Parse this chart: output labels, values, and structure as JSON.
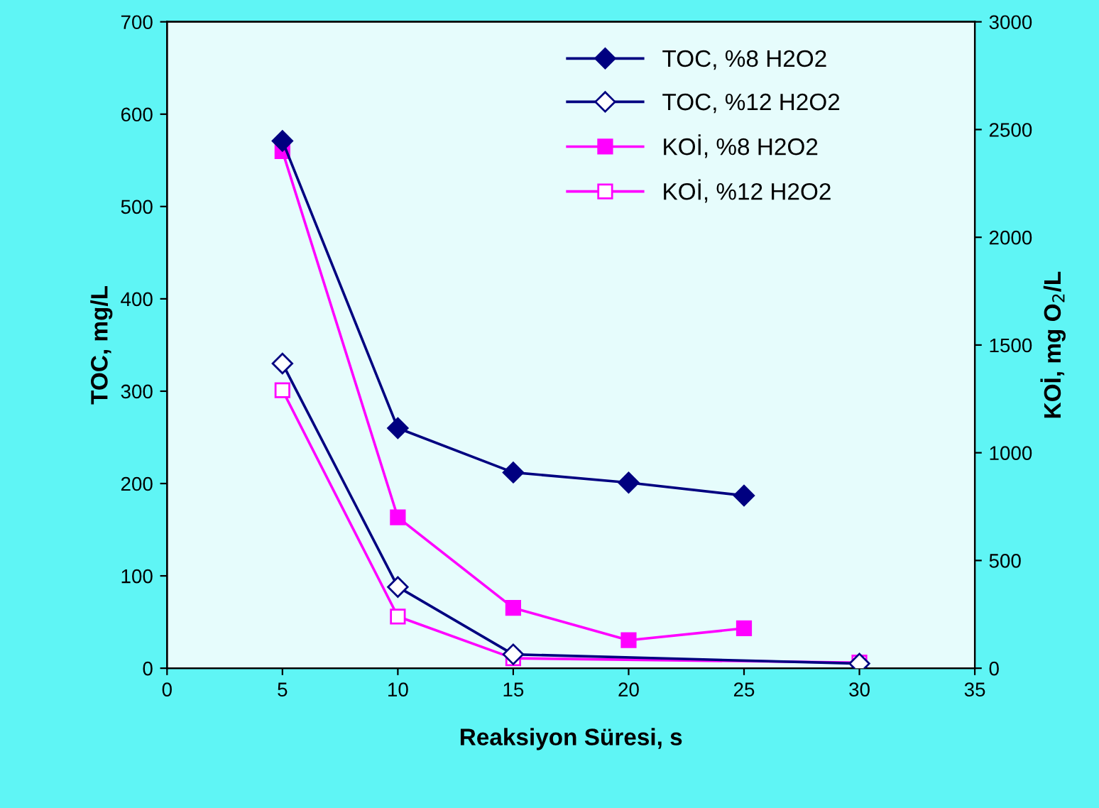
{
  "chart_data": {
    "type": "line",
    "xlabel": "Reaksiyon Süresi, s",
    "ylabel": "TOC, mg/L",
    "y2label": "KOİ, mg O$_{2}$/L",
    "xlim": [
      0,
      35
    ],
    "xticks": [
      0,
      5,
      10,
      15,
      20,
      25,
      30,
      35
    ],
    "ylim": [
      0,
      700
    ],
    "yticks": [
      0,
      100,
      200,
      300,
      400,
      500,
      600,
      700
    ],
    "y2lim": [
      0,
      3000
    ],
    "y2ticks": [
      0,
      500,
      1000,
      1500,
      2000,
      2500,
      3000
    ],
    "grid": false,
    "legend": "top right",
    "line_style": "solid",
    "series": [
      {
        "name": "TOC, %8 H2O2",
        "color": "#000080",
        "marker": "diamond",
        "x": [
          5,
          10,
          15,
          20,
          25
        ],
        "values": [
          571,
          260,
          212,
          201,
          187
        ]
      },
      {
        "name": "TOC, %12 H2O2",
        "color": "#000080",
        "marker": "diamond",
        "x": [
          5,
          10,
          15,
          30
        ],
        "values": [
          330,
          88,
          15,
          5
        ]
      },
      {
        "name": "KOİ, %8 H2O2",
        "color": "#ff00ff",
        "marker": "square",
        "axis": "y2",
        "x": [
          5,
          10,
          15,
          20,
          25
        ],
        "values": [
          2400,
          700,
          280,
          130,
          185
        ]
      },
      {
        "name": "KOİ, %12 H2O2",
        "color": "#ff00ff",
        "marker": "square",
        "axis": "y2",
        "x": [
          5,
          10,
          15,
          30
        ],
        "values": [
          1290,
          240,
          46,
          26
        ]
      }
    ]
  }
}
